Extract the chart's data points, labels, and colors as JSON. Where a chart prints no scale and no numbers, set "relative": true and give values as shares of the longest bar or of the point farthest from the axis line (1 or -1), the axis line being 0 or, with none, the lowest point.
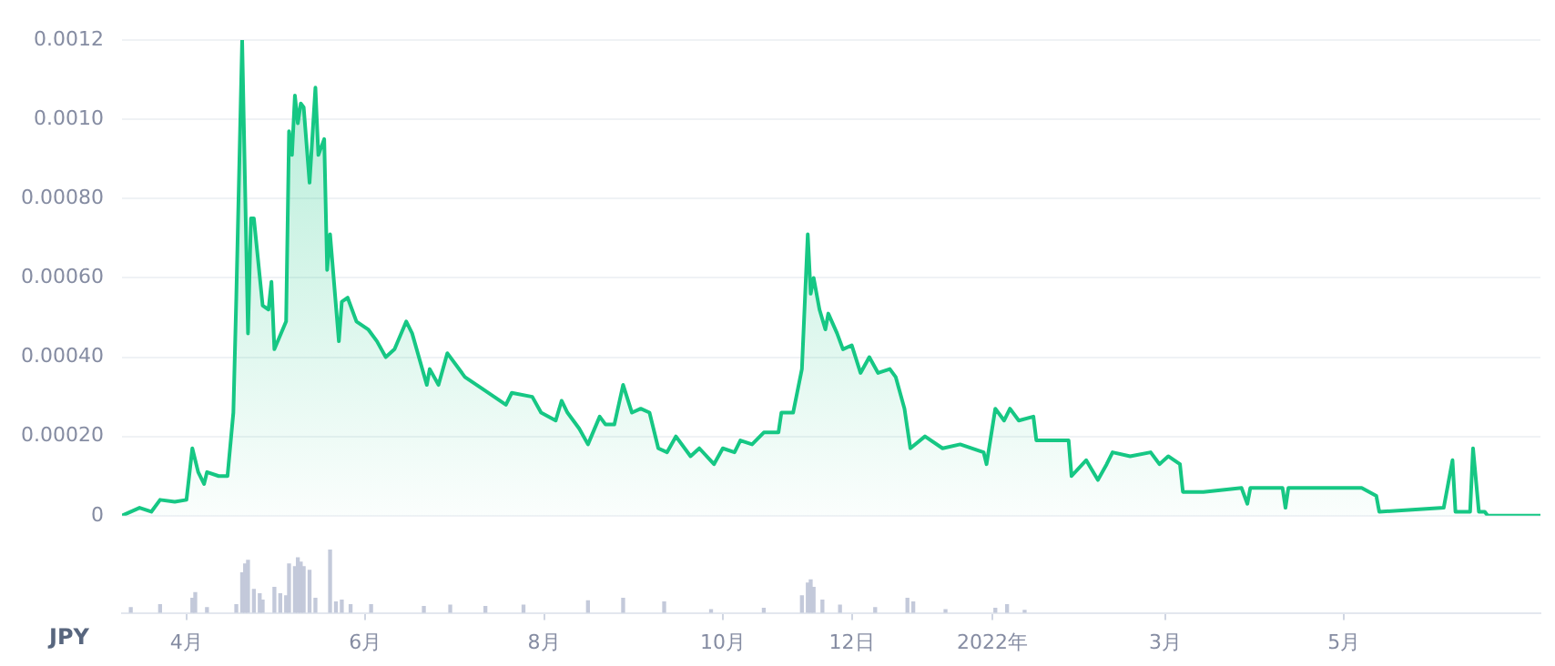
{
  "chart_data": [
    {
      "type": "area",
      "color": "#16c784",
      "xlim": [
        "2021-03-10",
        "2022-07-07"
      ],
      "ylim": [
        0,
        0.0012
      ],
      "grid": "y",
      "tick_labels": "y",
      "yticks": [
        0,
        {
          "value": 0.0002,
          "label": "0.00020"
        },
        {
          "value": 0.0004,
          "label": "0.00040"
        },
        {
          "value": 0.0006,
          "label": "0.00060"
        },
        {
          "value": 0.0008,
          "label": "0.00080"
        },
        {
          "value": 0.001,
          "label": "0.0010"
        },
        0.0012
      ],
      "x": [
        "2021-03-10",
        "2021-03-16",
        "2021-03-20",
        "2021-03-23",
        "2021-03-28",
        "2021-04-01",
        "2021-04-03",
        "2021-04-05",
        "2021-04-07",
        "2021-04-08",
        "2021-04-12",
        "2021-04-15",
        "2021-04-17",
        "2021-04-18",
        "2021-04-20",
        "2021-04-22",
        "2021-04-23",
        "2021-04-24",
        "2021-04-27",
        "2021-04-29",
        "2021-04-30",
        "2021-05-01",
        "2021-05-05",
        "2021-05-06",
        "2021-05-07",
        "2021-05-08",
        "2021-05-09",
        "2021-05-10",
        "2021-05-11",
        "2021-05-13",
        "2021-05-15",
        "2021-05-16",
        "2021-05-18",
        "2021-05-19",
        "2021-05-20",
        "2021-05-23",
        "2021-05-24",
        "2021-05-26",
        "2021-05-29",
        "2021-06-02",
        "2021-06-05",
        "2021-06-08",
        "2021-06-11",
        "2021-06-15",
        "2021-06-17",
        "2021-06-22",
        "2021-06-23",
        "2021-06-26",
        "2021-06-29",
        "2021-07-05",
        "2021-07-11",
        "2021-07-19",
        "2021-07-21",
        "2021-07-28",
        "2021-07-31",
        "2021-08-05",
        "2021-08-07",
        "2021-08-09",
        "2021-08-13",
        "2021-08-16",
        "2021-08-20",
        "2021-08-22",
        "2021-08-25",
        "2021-08-28",
        "2021-08-31",
        "2021-09-03",
        "2021-09-06",
        "2021-09-09",
        "2021-09-12",
        "2021-09-15",
        "2021-09-20",
        "2021-09-23",
        "2021-09-28",
        "2021-10-01",
        "2021-10-05",
        "2021-10-07",
        "2021-10-11",
        "2021-10-15",
        "2021-10-20",
        "2021-10-21",
        "2021-10-25",
        "2021-10-28",
        "2021-10-30",
        "2021-10-31",
        "2021-11-01",
        "2021-11-03",
        "2021-11-05",
        "2021-11-06",
        "2021-11-09",
        "2021-11-11",
        "2021-11-14",
        "2021-11-17",
        "2021-11-20",
        "2021-11-23",
        "2021-11-27",
        "2021-11-29",
        "2021-12-02",
        "2021-12-04",
        "2021-12-09",
        "2021-12-15",
        "2021-12-21",
        "2021-12-29",
        "2021-12-30",
        "2022-01-02",
        "2022-01-05",
        "2022-01-07",
        "2022-01-10",
        "2022-01-15",
        "2022-01-16",
        "2022-01-27",
        "2022-01-28",
        "2022-02-02",
        "2022-02-06",
        "2022-02-09",
        "2022-02-11",
        "2022-02-17",
        "2022-02-24",
        "2022-02-27",
        "2022-03-02",
        "2022-03-06",
        "2022-03-07",
        "2022-03-14",
        "2022-03-27",
        "2022-03-29",
        "2022-03-30",
        "2022-04-10",
        "2022-04-11",
        "2022-04-12",
        "2022-05-07",
        "2022-05-12",
        "2022-05-13",
        "2022-06-04",
        "2022-06-07",
        "2022-06-08",
        "2022-06-13",
        "2022-06-14",
        "2022-06-16",
        "2022-06-18",
        "2022-06-19",
        "2022-07-07"
      ],
      "values": [
        0,
        2e-05,
        1e-05,
        4e-05,
        3.5e-05,
        4e-05,
        0.00017,
        0.00011,
        8e-05,
        0.00011,
        0.0001,
        0.0001,
        0.00026,
        0.00055,
        0.0012,
        0.00046,
        0.00075,
        0.00075,
        0.00053,
        0.00052,
        0.00059,
        0.00042,
        0.00049,
        0.00097,
        0.00091,
        0.00106,
        0.00099,
        0.00104,
        0.00103,
        0.00084,
        0.00108,
        0.00091,
        0.00095,
        0.00062,
        0.00071,
        0.00044,
        0.00054,
        0.00055,
        0.00049,
        0.00047,
        0.00044,
        0.0004,
        0.00042,
        0.00049,
        0.00046,
        0.00033,
        0.00037,
        0.00033,
        0.00041,
        0.00035,
        0.00032,
        0.00028,
        0.00031,
        0.0003,
        0.00026,
        0.00024,
        0.00029,
        0.00026,
        0.00022,
        0.00018,
        0.00025,
        0.00023,
        0.00023,
        0.00033,
        0.00026,
        0.00027,
        0.00026,
        0.00017,
        0.00016,
        0.0002,
        0.00015,
        0.00017,
        0.00013,
        0.00017,
        0.00016,
        0.00019,
        0.00018,
        0.00021,
        0.00021,
        0.00026,
        0.00026,
        0.00037,
        0.00071,
        0.00056,
        0.0006,
        0.00052,
        0.00047,
        0.00051,
        0.00046,
        0.00042,
        0.00043,
        0.00036,
        0.0004,
        0.00036,
        0.00037,
        0.00035,
        0.00027,
        0.00017,
        0.0002,
        0.00017,
        0.00018,
        0.00016,
        0.00013,
        0.00027,
        0.00024,
        0.00027,
        0.00024,
        0.00025,
        0.00019,
        0.00019,
        0.0001,
        0.00014,
        9e-05,
        0.00013,
        0.00016,
        0.00015,
        0.00016,
        0.00013,
        0.00015,
        0.00013,
        6e-05,
        6e-05,
        7e-05,
        3e-05,
        7e-05,
        7e-05,
        2e-05,
        7e-05,
        7e-05,
        5e-05,
        1e-05,
        2e-05,
        0.00014,
        1e-05,
        1e-05,
        0.00017,
        1e-05,
        1e-05,
        0,
        0
      ]
    },
    {
      "type": "bar",
      "relative": true,
      "color": "#c3c9da",
      "xlim": [
        "2021-03-10",
        "2022-07-07"
      ],
      "tick_labels": "x",
      "xlabel": "JPY",
      "xticks": [
        {
          "value": "2021-04-01",
          "label": "4月"
        },
        {
          "value": "2021-06-01",
          "label": "6月"
        },
        {
          "value": "2021-08-01",
          "label": "8月"
        },
        {
          "value": "2021-10-01",
          "label": "10月"
        },
        {
          "value": "2021-11-14",
          "label": "12日"
        },
        {
          "value": "2022-01-01",
          "label": "2022年"
        },
        {
          "value": "2022-03-01",
          "label": "3月"
        },
        {
          "value": "2022-05-01",
          "label": "5月"
        }
      ],
      "x": [
        "2021-03-13",
        "2021-03-23",
        "2021-04-03",
        "2021-04-04",
        "2021-04-08",
        "2021-04-18",
        "2021-04-20",
        "2021-04-21",
        "2021-04-22",
        "2021-04-24",
        "2021-04-26",
        "2021-04-27",
        "2021-05-01",
        "2021-05-03",
        "2021-05-05",
        "2021-05-06",
        "2021-05-08",
        "2021-05-09",
        "2021-05-10",
        "2021-05-11",
        "2021-05-13",
        "2021-05-15",
        "2021-05-20",
        "2021-05-22",
        "2021-05-24",
        "2021-05-27",
        "2021-06-03",
        "2021-06-21",
        "2021-06-30",
        "2021-07-12",
        "2021-07-25",
        "2021-08-16",
        "2021-08-28",
        "2021-09-11",
        "2021-09-27",
        "2021-10-15",
        "2021-10-28",
        "2021-10-30",
        "2021-10-31",
        "2021-11-01",
        "2021-11-04",
        "2021-11-10",
        "2021-11-22",
        "2021-12-03",
        "2021-12-05",
        "2021-12-16",
        "2022-01-02",
        "2022-01-06",
        "2022-01-12"
      ],
      "values": [
        0.08,
        0.13,
        0.23,
        0.32,
        0.08,
        0.13,
        0.63,
        0.77,
        0.83,
        0.37,
        0.3,
        0.2,
        0.4,
        0.3,
        0.27,
        0.77,
        0.73,
        0.87,
        0.8,
        0.73,
        0.67,
        0.23,
        1,
        0.17,
        0.2,
        0.13,
        0.13,
        0.1,
        0.12,
        0.1,
        0.12,
        0.19,
        0.23,
        0.17,
        0.05,
        0.07,
        0.27,
        0.47,
        0.52,
        0.4,
        0.2,
        0.12,
        0.08,
        0.23,
        0.17,
        0.05,
        0.07,
        0.13,
        0.04
      ]
    }
  ]
}
